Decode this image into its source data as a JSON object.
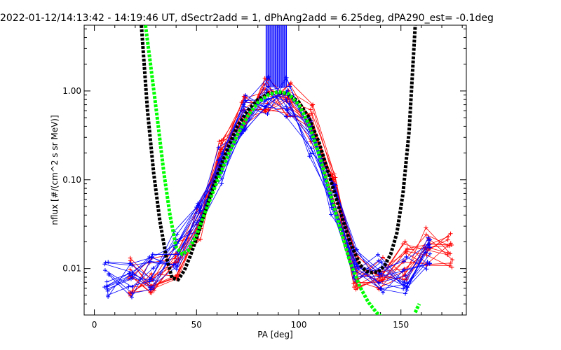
{
  "chart_data": {
    "type": "line",
    "title": "2022-01-12/14:13:42 - 14:19:46 UT, dSectr2add = 1, dPhAng2add = 6.25deg, dPA290_est=  -0.1deg",
    "xlabel": "PA [deg]",
    "ylabel": "nflux [#/(cm^2 s sr MeV)]",
    "xlim": [
      -5,
      182
    ],
    "ylim": [
      0.003,
      5.5
    ],
    "yscale": "log",
    "xticks": [
      "0",
      "50",
      "100",
      "150"
    ],
    "yticks": [
      "0.01",
      "0.10",
      "1.00"
    ],
    "grid": false,
    "colors": {
      "series_a": "#ff0000",
      "series_b": "#0000ff",
      "fit_a": "#000000",
      "fit_b": "#00ff00"
    },
    "series": [
      {
        "color": "#ff0000",
        "role": "red-pitch-angle-distributions",
        "x": [
          18,
          28,
          40,
          51,
          62,
          73,
          84,
          95,
          106,
          117,
          128,
          140,
          152,
          163,
          174
        ],
        "y": [
          0.0082,
          0.008,
          0.0125,
          0.033,
          0.2,
          0.58,
          0.92,
          0.85,
          0.45,
          0.09,
          0.0095,
          0.0085,
          0.0125,
          0.018,
          0.016
        ]
      },
      {
        "color": "#0000ff",
        "role": "blue-pitch-angle-distributions",
        "x": [
          6,
          18,
          28,
          40,
          51,
          62,
          73,
          84,
          95,
          106,
          117,
          128,
          140,
          152,
          163
        ],
        "y": [
          0.0073,
          0.0073,
          0.0095,
          0.016,
          0.035,
          0.14,
          0.55,
          0.88,
          0.85,
          0.3,
          0.06,
          0.012,
          0.009,
          0.0085,
          0.015
        ]
      },
      {
        "color": "#000000",
        "role": "fit-black",
        "x": [
          23,
          26,
          29,
          32,
          35,
          38,
          41,
          44,
          47,
          50,
          55,
          60,
          65,
          70,
          75,
          80,
          85,
          90,
          95,
          100,
          105,
          110,
          115,
          120,
          125,
          130,
          133,
          136,
          139,
          142,
          145,
          148,
          151,
          154,
          157
        ],
        "y": [
          5.5,
          0.6,
          0.12,
          0.035,
          0.014,
          0.0078,
          0.0075,
          0.0095,
          0.014,
          0.022,
          0.05,
          0.11,
          0.22,
          0.4,
          0.6,
          0.8,
          0.93,
          0.97,
          0.92,
          0.75,
          0.5,
          0.26,
          0.11,
          0.046,
          0.02,
          0.011,
          0.0093,
          0.009,
          0.0092,
          0.0108,
          0.0145,
          0.025,
          0.07,
          0.35,
          5.5
        ]
      },
      {
        "color": "#00ff00",
        "role": "fit-green",
        "x": [
          25,
          28,
          31,
          34,
          37,
          40,
          43,
          46,
          50,
          55,
          60,
          65,
          70,
          75,
          80,
          85,
          90,
          95,
          100,
          105,
          110,
          115,
          120,
          125,
          130,
          134,
          138,
          141
        ],
        "y": [
          5.5,
          1.6,
          0.45,
          0.12,
          0.04,
          0.0175,
          0.0145,
          0.016,
          0.024,
          0.048,
          0.095,
          0.18,
          0.32,
          0.52,
          0.74,
          0.9,
          0.98,
          0.93,
          0.7,
          0.42,
          0.19,
          0.075,
          0.03,
          0.012,
          0.0062,
          0.0042,
          0.0032,
          0.0028
        ]
      },
      {
        "color": "#00ff00",
        "role": "fit-green-tail",
        "x": [
          157,
          158,
          159
        ],
        "y": [
          0.0032,
          0.0036,
          0.004
        ]
      }
    ],
    "bars": {
      "color": "#0000ff",
      "x_range": [
        84,
        94
      ],
      "y_from": 1.1,
      "y_to": 5.5
    }
  }
}
